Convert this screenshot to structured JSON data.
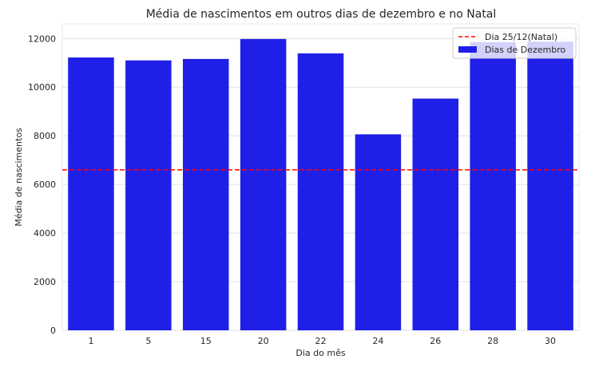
{
  "chart_data": {
    "type": "bar",
    "title": "Média de nascimentos em outros dias de dezembro e no Natal",
    "xlabel": "Dia do mês",
    "ylabel": "Média de nascimentos",
    "categories": [
      "1",
      "5",
      "15",
      "20",
      "22",
      "24",
      "26",
      "28",
      "30"
    ],
    "series": [
      {
        "name": "Dias de Dezembro",
        "values": [
          11220,
          11100,
          11160,
          11980,
          11390,
          8060,
          9530,
          11850,
          11870
        ],
        "color": "#1f1fe8"
      }
    ],
    "reference_lines": [
      {
        "name": "Dia 25/12(Natal)",
        "value": 6600,
        "color": "#ff0000",
        "style": "dashed"
      }
    ],
    "ylim": [
      0,
      12600
    ],
    "yticks": [
      0,
      2000,
      4000,
      6000,
      8000,
      10000,
      12000
    ],
    "grid": "horizontal",
    "legend_position": "top-right"
  }
}
